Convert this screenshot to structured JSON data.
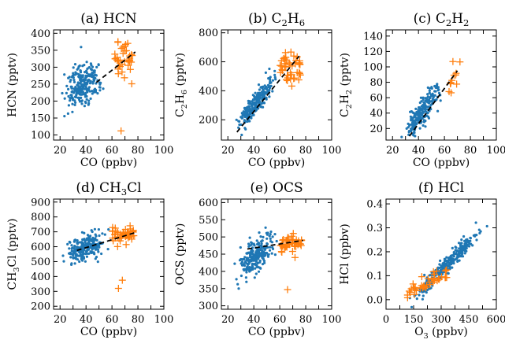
{
  "colors": {
    "dots": "#1f77b4",
    "crosses": "#ff7f0e",
    "trend": "#000000"
  },
  "chart_data": [
    {
      "type": "scatter",
      "title": "(a) HCN",
      "xlabel": "CO (ppbv)",
      "ylabel": "HCN (pptv)",
      "xlim": [
        15,
        100
      ],
      "ylim": [
        85,
        410
      ],
      "xticks": [
        20,
        30,
        40,
        50,
        60,
        70,
        80,
        90,
        100
      ],
      "xticklabels": [
        "20",
        "",
        "40",
        "",
        "60",
        "",
        "80",
        "",
        "100"
      ],
      "yticks": [
        100,
        150,
        200,
        250,
        300,
        350,
        400
      ],
      "trend": {
        "x": [
          48,
          78
        ],
        "y": [
          255,
          345
        ]
      },
      "dots": {
        "x_range": [
          20,
          58
        ],
        "x_center": 36,
        "y_base": 245,
        "y_slope": 1.3,
        "y_spread": 30,
        "count": 240
      },
      "crosses": {
        "x_range": [
          62,
          76
        ],
        "y_center": 315,
        "y_spread": 25,
        "count": 40
      },
      "outliers": [
        {
          "x": 67,
          "y": 112
        }
      ]
    },
    {
      "type": "scatter",
      "title": "(b) C2H6",
      "xlabel": "CO (ppbv)",
      "ylabel": "C2H6 (pptv)",
      "xlim": [
        15,
        100
      ],
      "ylim": [
        60,
        820
      ],
      "xticks": [
        20,
        30,
        40,
        50,
        60,
        70,
        80,
        90,
        100
      ],
      "xticklabels": [
        "20",
        "",
        "40",
        "",
        "60",
        "",
        "80",
        "",
        "100"
      ],
      "yticks": [
        200,
        400,
        600,
        800
      ],
      "trend": {
        "x": [
          27,
          75
        ],
        "y": [
          115,
          640
        ]
      },
      "dots": {
        "x_range": [
          25,
          60
        ],
        "x_center": 40,
        "y_base": 300,
        "y_slope": 11,
        "y_spread": 40,
        "count": 250
      },
      "crosses": {
        "x_range": [
          60,
          76
        ],
        "y_center": 560,
        "y_spread": 60,
        "count": 45
      },
      "outliers": []
    },
    {
      "type": "scatter",
      "title": "(c) C2H2",
      "xlabel": "CO (ppbv)",
      "ylabel": "C2H2 (pptv)",
      "xlim": [
        15,
        100
      ],
      "ylim": [
        5,
        148
      ],
      "xticks": [
        20,
        30,
        40,
        50,
        60,
        70,
        80,
        90,
        100
      ],
      "xticklabels": [
        "20",
        "",
        "40",
        "",
        "60",
        "",
        "80",
        "",
        "100"
      ],
      "yticks": [
        20,
        40,
        60,
        80,
        100,
        120,
        140
      ],
      "trend": {
        "x": [
          33,
          70
        ],
        "y": [
          10,
          95
        ]
      },
      "dots": {
        "x_range": [
          27,
          62
        ],
        "x_center": 40,
        "y_base": 35,
        "y_slope": 2.3,
        "y_spread": 9,
        "count": 230
      },
      "crosses": {
        "x_range": [
          63,
          72
        ],
        "y_center": 85,
        "y_spread": 10,
        "count": 12
      },
      "outliers": []
    },
    {
      "type": "scatter",
      "title": "(d) CH3Cl",
      "xlabel": "CO (ppbv)",
      "ylabel": "CH3Cl (pptv)",
      "xlim": [
        15,
        100
      ],
      "ylim": [
        180,
        920
      ],
      "xticks": [
        20,
        30,
        40,
        50,
        60,
        70,
        80,
        90,
        100
      ],
      "xticklabels": [
        "20",
        "",
        "40",
        "",
        "60",
        "",
        "80",
        "",
        "100"
      ],
      "yticks": [
        200,
        300,
        400,
        500,
        600,
        700,
        800,
        900
      ],
      "trend": {
        "x": [
          33,
          78
        ],
        "y": [
          575,
          695
        ]
      },
      "dots": {
        "x_range": [
          20,
          60
        ],
        "x_center": 38,
        "y_base": 590,
        "y_slope": 2.6,
        "y_spread": 40,
        "count": 240
      },
      "crosses": {
        "x_range": [
          60,
          77
        ],
        "y_center": 675,
        "y_spread": 30,
        "count": 45
      },
      "outliers": [
        {
          "x": 65,
          "y": 320
        },
        {
          "x": 68,
          "y": 375
        }
      ]
    },
    {
      "type": "scatter",
      "title": "(e) OCS",
      "xlabel": "CO (ppbv)",
      "ylabel": "OCS (pptv)",
      "xlim": [
        15,
        100
      ],
      "ylim": [
        290,
        610
      ],
      "xticks": [
        20,
        30,
        40,
        50,
        60,
        70,
        80,
        90,
        100
      ],
      "xticklabels": [
        "20",
        "",
        "40",
        "",
        "60",
        "",
        "80",
        "",
        "100"
      ],
      "yticks": [
        300,
        350,
        400,
        450,
        500,
        550,
        600
      ],
      "trend": {
        "x": [
          35,
          78
        ],
        "y": [
          465,
          490
        ]
      },
      "dots": {
        "x_range": [
          25,
          60
        ],
        "x_center": 40,
        "y_base": 440,
        "y_slope": 2.5,
        "y_spread": 25,
        "count": 240
      },
      "crosses": {
        "x_range": [
          60,
          77
        ],
        "y_center": 480,
        "y_spread": 12,
        "count": 45
      },
      "outliers": [
        {
          "x": 66,
          "y": 347
        }
      ]
    },
    {
      "type": "scatter",
      "title": "(f) HCl",
      "xlabel": "O3 (ppbv)",
      "ylabel": "HCl (ppbv)",
      "xlim": [
        0,
        600
      ],
      "ylim": [
        -0.04,
        0.42
      ],
      "xticks": [
        0,
        75,
        150,
        225,
        300,
        375,
        450,
        525,
        600
      ],
      "xticklabels": [
        "0",
        "",
        "150",
        "",
        "300",
        "",
        "450",
        "",
        "600"
      ],
      "yticks": [
        0.0,
        0.1,
        0.2,
        0.3,
        0.4
      ],
      "yticklabels": [
        "0.0",
        "0.1",
        "0.2",
        "0.3",
        "0.4"
      ],
      "trend": null,
      "dots": {
        "x_range": [
          130,
          610
        ],
        "x_center": 280,
        "y_base": 0.107,
        "y_slope": 0.00077,
        "y_spread": 0.018,
        "count": 330
      },
      "crosses": {
        "x_range": [
          100,
          330
        ],
        "y_center": 0.03,
        "y_spread": 0.02,
        "count": 40
      },
      "outliers": []
    }
  ]
}
